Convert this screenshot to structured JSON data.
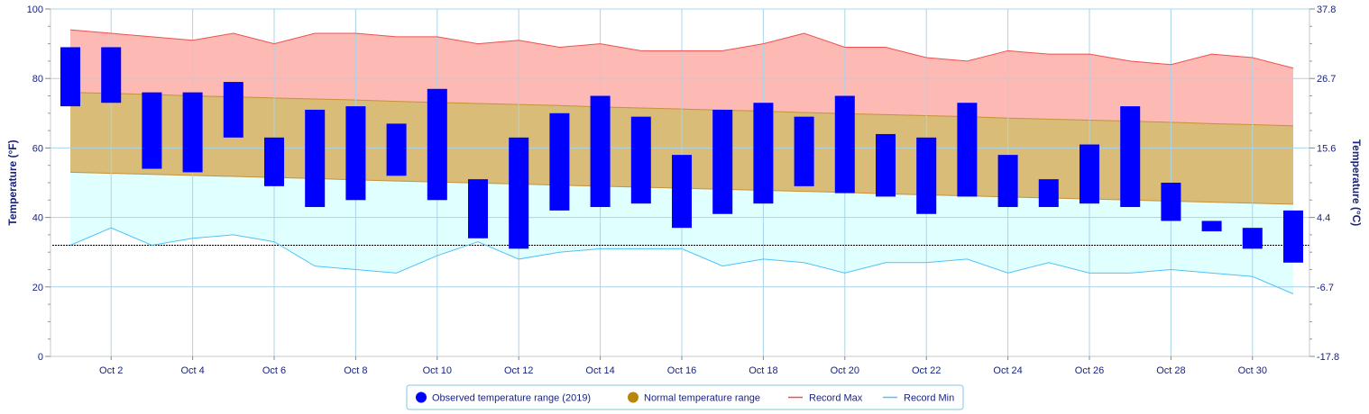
{
  "chart_data": {
    "type": "bar",
    "left_axis": {
      "label": "Temperature (°F)",
      "ticks": [
        "0",
        "20",
        "40",
        "60",
        "80",
        "100"
      ],
      "ylim": [
        0,
        100
      ]
    },
    "right_axis": {
      "label": "Temperature (°C)",
      "ticks": [
        "-17.8",
        "-6.7",
        "4.4",
        "15.6",
        "26.7",
        "37.8"
      ]
    },
    "x_tick_labels": [
      "Oct 2",
      "Oct 4",
      "Oct 6",
      "Oct 8",
      "Oct 10",
      "Oct 12",
      "Oct 14",
      "Oct 16",
      "Oct 18",
      "Oct 20",
      "Oct 22",
      "Oct 24",
      "Oct 26",
      "Oct 28",
      "Oct 30"
    ],
    "x_tick_days": [
      2,
      4,
      6,
      8,
      10,
      12,
      14,
      16,
      18,
      20,
      22,
      24,
      26,
      28,
      30
    ],
    "days": [
      1,
      2,
      3,
      4,
      5,
      6,
      7,
      8,
      9,
      10,
      11,
      12,
      13,
      14,
      15,
      16,
      17,
      18,
      19,
      20,
      21,
      22,
      23,
      24,
      25,
      26,
      27,
      28,
      29,
      30,
      31
    ],
    "freezing_line_f": 32,
    "legend": {
      "observed": "Observed temperature range (2019)",
      "normal": "Normal temperature range",
      "record_max": "Record Max",
      "record_min": "Record Min"
    },
    "series": [
      {
        "name": "Observed temperature range (2019)",
        "type": "columnrange",
        "low": [
          72,
          73,
          54,
          53,
          63,
          49,
          43,
          45,
          52,
          45,
          34,
          31,
          42,
          43,
          44,
          37,
          41,
          44,
          49,
          47,
          46,
          41,
          46,
          43,
          43,
          44,
          43,
          39,
          36,
          31,
          27
        ],
        "high": [
          89,
          89,
          76,
          76,
          79,
          63,
          71,
          72,
          67,
          77,
          51,
          63,
          70,
          75,
          69,
          58,
          71,
          73,
          69,
          75,
          64,
          63,
          73,
          58,
          51,
          61,
          72,
          50,
          39,
          37,
          42
        ]
      },
      {
        "name": "Normal temperature range",
        "type": "arearange",
        "low": [
          53.0,
          52.7,
          52.4,
          52.1,
          51.8,
          51.5,
          51.2,
          50.8,
          50.5,
          50.2,
          49.9,
          49.6,
          49.3,
          49.0,
          48.7,
          48.4,
          48.1,
          47.8,
          47.5,
          47.2,
          46.8,
          46.5,
          46.2,
          45.9,
          45.6,
          45.3,
          45.0,
          44.7,
          44.4,
          44.1,
          43.8
        ],
        "high": [
          76.0,
          75.7,
          75.4,
          75.0,
          74.7,
          74.4,
          74.1,
          73.8,
          73.4,
          73.1,
          72.8,
          72.5,
          72.2,
          71.8,
          71.5,
          71.2,
          70.9,
          70.6,
          70.2,
          69.9,
          69.6,
          69.3,
          69.0,
          68.6,
          68.3,
          68.0,
          67.7,
          67.4,
          67.0,
          66.7,
          66.4
        ]
      },
      {
        "name": "Record Max",
        "type": "line",
        "values": [
          94,
          93,
          92,
          91,
          93,
          90,
          93,
          93,
          92,
          92,
          90,
          91,
          89,
          90,
          88,
          88,
          88,
          90,
          93,
          89,
          89,
          86,
          85,
          88,
          87,
          87,
          85,
          84,
          87,
          86,
          83
        ]
      },
      {
        "name": "Record Min",
        "type": "line",
        "values": [
          32,
          37,
          32,
          34,
          35,
          33,
          26,
          25,
          24,
          29,
          33,
          28,
          30,
          31,
          31,
          31,
          26,
          28,
          27,
          24,
          27,
          27,
          28,
          24,
          27,
          24,
          24,
          25,
          24,
          23,
          18
        ]
      }
    ],
    "colors": {
      "observed": "#0000ff",
      "normal_fill": "#d8bc78",
      "normal_edge": "#c6923a",
      "normal_marker": "#b8860b",
      "record_max_line": "#f05050",
      "record_max_fill": "#fdb9b3",
      "record_min_line": "#4fc3f7",
      "record_min_fill": "#e0ffff",
      "grid": "#aad4e8",
      "axis_text": "#1a237e"
    }
  }
}
